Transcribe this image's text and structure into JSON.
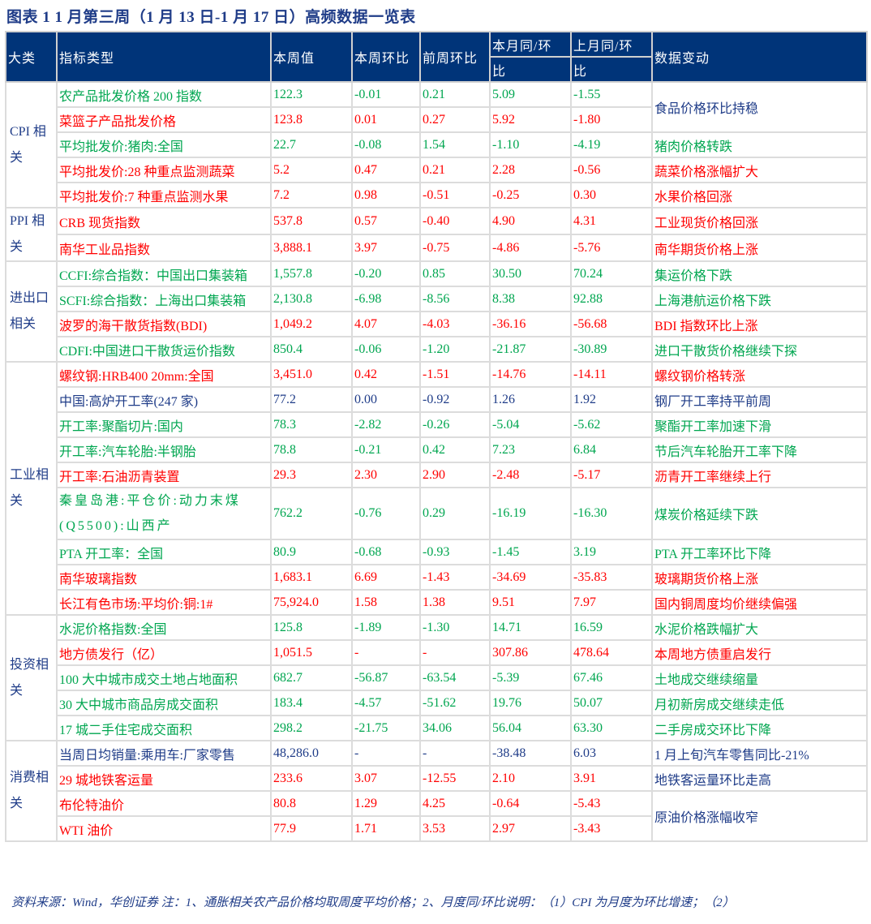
{
  "title": "图表 1   1 月第三周（1 月 13 日-1 月 17 日）高频数据一览表",
  "header": {
    "category": "大类",
    "indicator": "指标类型",
    "value": "本周值",
    "wow": "本周环比",
    "prev_wow": "前周环比",
    "this_month_top": "本月同/环",
    "this_month_bottom": "比",
    "last_month_top": "上月同/环",
    "last_month_bottom": "比",
    "note": "数据变动"
  },
  "colors": {
    "header_bg": "#003479",
    "green": "#00a650",
    "red": "#ff0000",
    "navy": "#1f3c88"
  },
  "groups": [
    {
      "category": "CPI 相关",
      "rows": [
        {
          "color": "green",
          "name": "农产品批发价格 200 指数",
          "value": "122.3",
          "wow": "-0.01",
          "prev": "0.21",
          "tm": "5.09",
          "lm": "-1.55",
          "note": "食品价格环比持稳",
          "note_color": "navy"
        },
        {
          "color": "red",
          "name": "菜篮子产品批发价格",
          "value": "123.8",
          "wow": "0.01",
          "prev": "0.27",
          "tm": "5.92",
          "lm": "-1.80",
          "note": null
        },
        {
          "color": "green",
          "name": "平均批发价:猪肉:全国",
          "value": "22.7",
          "wow": "-0.08",
          "prev": "1.54",
          "tm": "-1.10",
          "lm": "-4.19",
          "note": "猪肉价格转跌"
        },
        {
          "color": "red",
          "name": "平均批发价:28 种重点监测蔬菜",
          "value": "5.2",
          "wow": "0.47",
          "prev": "0.21",
          "tm": "2.28",
          "lm": "-0.56",
          "note": "蔬菜价格涨幅扩大"
        },
        {
          "color": "red",
          "name": "平均批发价:7 种重点监测水果",
          "value": "7.2",
          "wow": "0.98",
          "prev": "-0.51",
          "tm": "-0.25",
          "lm": "0.30",
          "note": "水果价格回涨"
        }
      ]
    },
    {
      "category": "PPI 相关",
      "rows": [
        {
          "color": "red",
          "name": "CRB 现货指数",
          "value": "537.8",
          "wow": "0.57",
          "prev": "-0.40",
          "tm": "4.90",
          "lm": "4.31",
          "note": "工业现货价格回涨"
        },
        {
          "color": "red",
          "name": "南华工业品指数",
          "value": "3,888.1",
          "wow": "3.97",
          "prev": "-0.75",
          "tm": "-4.86",
          "lm": "-5.76",
          "note": "南华期货价格上涨"
        }
      ]
    },
    {
      "category": "进出口相关",
      "rows": [
        {
          "color": "green",
          "name": "CCFI:综合指数：中国出口集装箱",
          "value": "1,557.8",
          "wow": "-0.20",
          "prev": "0.85",
          "tm": "30.50",
          "lm": "70.24",
          "note": "集运价格下跌"
        },
        {
          "color": "green",
          "name": "SCFI:综合指数：上海出口集装箱",
          "value": "2,130.8",
          "wow": "-6.98",
          "prev": "-8.56",
          "tm": "8.38",
          "lm": "92.88",
          "note": "上海港航运价格下跌"
        },
        {
          "color": "red",
          "name": "波罗的海干散货指数(BDI)",
          "value": "1,049.2",
          "wow": "4.07",
          "prev": "-4.03",
          "tm": "-36.16",
          "lm": "-56.68",
          "note": "BDI 指数环比上涨"
        },
        {
          "color": "green",
          "name": "CDFI:中国进口干散货运价指数",
          "value": "850.4",
          "wow": "-0.06",
          "prev": "-1.20",
          "tm": "-21.87",
          "lm": "-30.89",
          "note": "进口干散货价格继续下探"
        }
      ]
    },
    {
      "category": "工业相关",
      "rows": [
        {
          "color": "red",
          "name": "螺纹钢:HRB400 20mm:全国",
          "value": "3,451.0",
          "wow": "0.42",
          "prev": "-1.51",
          "tm": "-14.76",
          "lm": "-14.11",
          "note": "螺纹钢价格转涨"
        },
        {
          "color": "navy",
          "name": "中国:高炉开工率(247 家)",
          "value": "77.2",
          "wow": "0.00",
          "prev": "-0.92",
          "tm": "1.26",
          "lm": "1.92",
          "note": "钢厂开工率持平前周"
        },
        {
          "color": "green",
          "name": "开工率:聚酯切片:国内",
          "value": "78.3",
          "wow": "-2.82",
          "prev": "-0.26",
          "tm": "-5.04",
          "lm": "-5.62",
          "note": "聚酯开工率加速下滑"
        },
        {
          "color": "green",
          "name": "开工率:汽车轮胎:半钢胎",
          "value": "78.8",
          "wow": "-0.21",
          "prev": "0.42",
          "tm": "7.23",
          "lm": "6.84",
          "note": "节后汽车轮胎开工率下降"
        },
        {
          "color": "red",
          "name": "开工率:石油沥青装置",
          "value": "29.3",
          "wow": "2.30",
          "prev": "2.90",
          "tm": "-2.48",
          "lm": "-5.17",
          "note": "沥青开工率继续上行"
        },
        {
          "color": "green",
          "name": "秦皇岛港:平仓价:动力末煤(Q5500):山西产",
          "value": "762.2",
          "wow": "-0.76",
          "prev": "0.29",
          "tm": "-16.19",
          "lm": "-16.30",
          "note": "煤炭价格延续下跌",
          "wrap": true
        },
        {
          "color": "green",
          "name": "PTA 开工率：全国",
          "value": "80.9",
          "wow": "-0.68",
          "prev": "-0.93",
          "tm": "-1.45",
          "lm": "3.19",
          "note": "PTA 开工率环比下降"
        },
        {
          "color": "red",
          "name": "南华玻璃指数",
          "value": "1,683.1",
          "wow": "6.69",
          "prev": "-1.43",
          "tm": "-34.69",
          "lm": "-35.83",
          "note": "玻璃期货价格上涨"
        },
        {
          "color": "red",
          "name": "长江有色市场:平均价:铜:1#",
          "value": "75,924.0",
          "wow": "1.58",
          "prev": "1.38",
          "tm": "9.51",
          "lm": "7.97",
          "note": "国内铜周度均价继续偏强"
        }
      ]
    },
    {
      "category": "投资相关",
      "rows": [
        {
          "color": "green",
          "name": "水泥价格指数:全国",
          "value": "125.8",
          "wow": "-1.89",
          "prev": "-1.30",
          "tm": "14.71",
          "lm": "16.59",
          "note": "水泥价格跌幅扩大"
        },
        {
          "color": "red",
          "name": "地方债发行（亿）",
          "value": "1,051.5",
          "wow": "-",
          "prev": "-",
          "tm": "307.86",
          "lm": "478.64",
          "note": "本周地方债重启发行"
        },
        {
          "color": "green",
          "name": "100 大中城市成交土地占地面积",
          "value": "682.7",
          "wow": "-56.87",
          "prev": "-63.54",
          "tm": "-5.39",
          "lm": "67.46",
          "note": "土地成交继续缩量"
        },
        {
          "color": "green",
          "name": "30 大中城市商品房成交面积",
          "value": "183.4",
          "wow": "-4.57",
          "prev": "-51.62",
          "tm": "19.76",
          "lm": "50.07",
          "note": "月初新房成交继续走低"
        },
        {
          "color": "green",
          "name": "17 城二手住宅成交面积",
          "value": "298.2",
          "wow": "-21.75",
          "prev": "34.06",
          "tm": "56.04",
          "lm": "63.30",
          "note": "二手房成交环比下降"
        }
      ]
    },
    {
      "category": "消费相关",
      "rows": [
        {
          "color": "navy",
          "name": "当周日均销量:乘用车:厂家零售",
          "value": "48,286.0",
          "wow": "-",
          "prev": "-",
          "tm": "-38.48",
          "lm": "6.03",
          "note": "1 月上旬汽车零售同比-21%"
        },
        {
          "color": "red",
          "name": "29 城地铁客运量",
          "value": "233.6",
          "wow": "3.07",
          "prev": "-12.55",
          "tm": "2.10",
          "lm": "3.91",
          "note": "地铁客运量环比走高",
          "note_color": "navy"
        },
        {
          "color": "red",
          "name": "布伦特油价",
          "value": "80.8",
          "wow": "1.29",
          "prev": "4.25",
          "tm": "-0.64",
          "lm": "-5.43",
          "note": "原油价格涨幅收窄",
          "note_color": "navy"
        },
        {
          "color": "red",
          "name": "WTI 油价",
          "value": "77.9",
          "wow": "1.71",
          "prev": "3.53",
          "tm": "2.97",
          "lm": "-3.43",
          "note": null
        }
      ]
    }
  ],
  "footnote": "资料来源：Wind，华创证券   注：1、通胀相关农产品价格均取周度平均价格；2、月度同/环比说明：（1）CPI 为月度为环比增速；（2）"
}
